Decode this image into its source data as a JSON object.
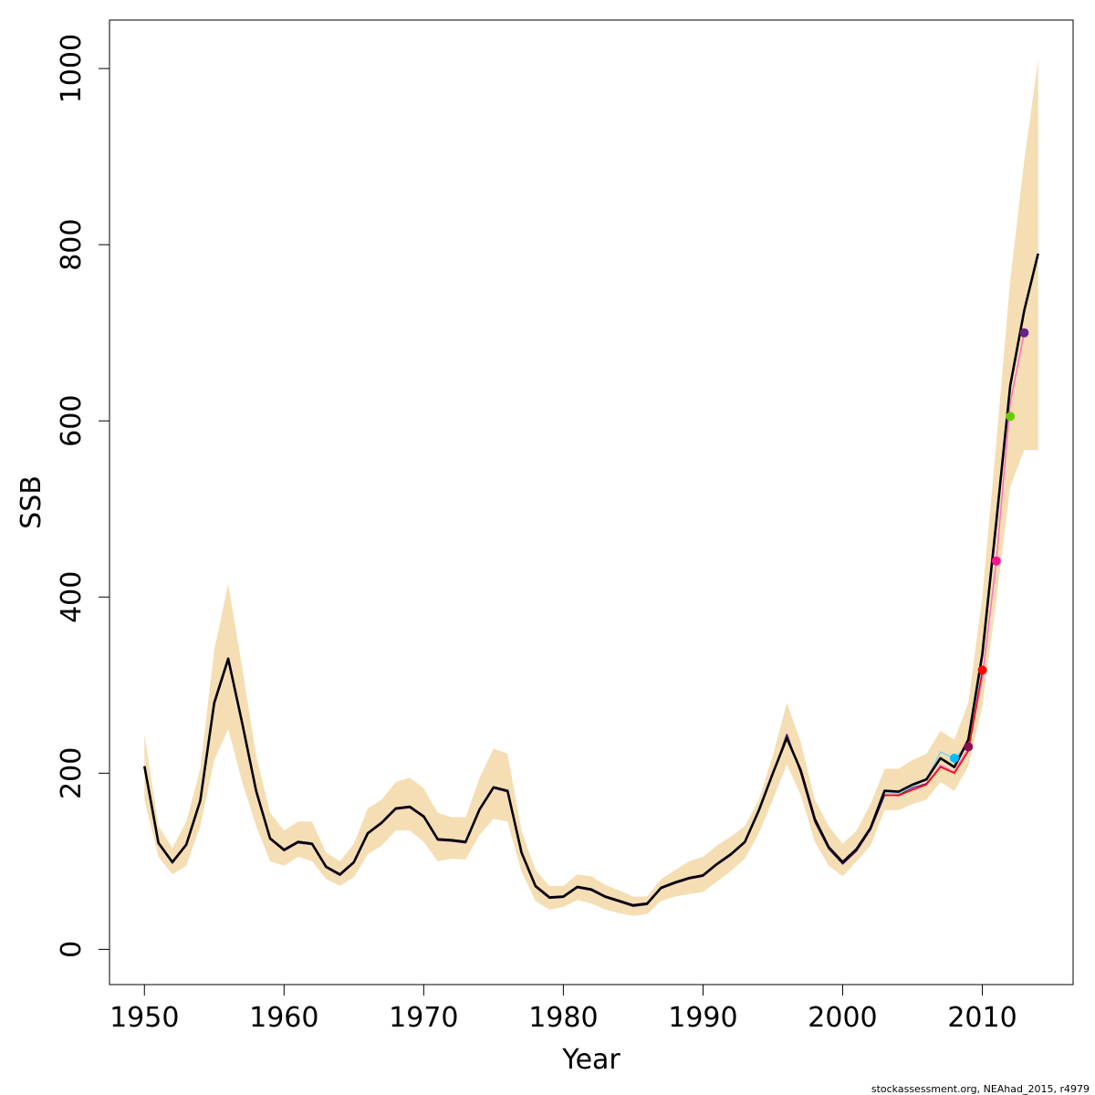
{
  "chart_data": {
    "type": "line",
    "xlabel": "Year",
    "ylabel": "SSB",
    "xlim": [
      1947.5,
      2016.5
    ],
    "ylim": [
      -40,
      1055
    ],
    "x_ticks": [
      1950,
      1960,
      1970,
      1980,
      1990,
      2000,
      2010
    ],
    "y_ticks": [
      0,
      200,
      400,
      600,
      800,
      1000
    ],
    "grid": false,
    "legend": "none",
    "footer": "stockassessment.org, NEAhad_2015, r4979",
    "confidence_band": {
      "color": "#f5deb3",
      "x": [
        1950,
        1951,
        1952,
        1953,
        1954,
        1955,
        1956,
        1957,
        1958,
        1959,
        1960,
        1961,
        1962,
        1963,
        1964,
        1965,
        1966,
        1967,
        1968,
        1969,
        1970,
        1971,
        1972,
        1973,
        1974,
        1975,
        1976,
        1977,
        1978,
        1979,
        1980,
        1981,
        1982,
        1983,
        1984,
        1985,
        1986,
        1987,
        1988,
        1989,
        1990,
        1991,
        1992,
        1993,
        1994,
        1995,
        1996,
        1997,
        1998,
        1999,
        2000,
        2001,
        2002,
        2003,
        2004,
        2005,
        2006,
        2007,
        2008,
        2009,
        2010,
        2011,
        2012,
        2013,
        2014
      ],
      "upper": [
        245,
        140,
        115,
        145,
        205,
        340,
        415,
        320,
        220,
        155,
        135,
        145,
        145,
        110,
        100,
        120,
        160,
        170,
        190,
        195,
        183,
        155,
        150,
        150,
        195,
        228,
        222,
        135,
        90,
        72,
        72,
        85,
        83,
        73,
        67,
        60,
        60,
        80,
        90,
        100,
        105,
        118,
        128,
        140,
        170,
        220,
        280,
        235,
        170,
        140,
        120,
        135,
        165,
        205,
        205,
        215,
        222,
        248,
        238,
        280,
        400,
        575,
        760,
        895,
        1010
      ],
      "lower": [
        170,
        105,
        85,
        95,
        140,
        215,
        250,
        190,
        140,
        100,
        95,
        105,
        100,
        80,
        72,
        82,
        108,
        118,
        135,
        135,
        122,
        100,
        103,
        102,
        130,
        148,
        145,
        88,
        55,
        45,
        48,
        56,
        52,
        45,
        41,
        38,
        40,
        55,
        60,
        63,
        65,
        77,
        89,
        103,
        132,
        170,
        210,
        175,
        122,
        95,
        83,
        100,
        118,
        158,
        158,
        165,
        170,
        190,
        180,
        208,
        275,
        395,
        525,
        567,
        567
      ]
    },
    "series": [
      {
        "color": "#4b0082",
        "width": 1.5,
        "x": [
          1950,
          1951,
          1952,
          1953,
          1954,
          1955,
          1956,
          1957,
          1958,
          1959,
          1960,
          1961,
          1962,
          1963,
          1964,
          1965,
          1966,
          1967,
          1968,
          1969,
          1970,
          1971,
          1972,
          1973,
          1974,
          1975,
          1976,
          1977,
          1978,
          1979,
          1980,
          1981,
          1982,
          1983,
          1984,
          1985,
          1986,
          1987,
          1988,
          1989,
          1990,
          1991,
          1992,
          1993,
          1994,
          1995,
          1996,
          1997,
          1998,
          1999,
          2000,
          2001,
          2002,
          2003,
          2004,
          2005,
          2006,
          2007,
          2008,
          2009
        ],
        "values": [
          207,
          120,
          98,
          118,
          168,
          278,
          328,
          255,
          178,
          125,
          112,
          121,
          119,
          93,
          84,
          98,
          131,
          143,
          159,
          161,
          150,
          124,
          123,
          121,
          158,
          183,
          179,
          109,
          71,
          58,
          59,
          70,
          67,
          59,
          54,
          49,
          51,
          69,
          75,
          80,
          83,
          96,
          107,
          121,
          157,
          199,
          244,
          200,
          145,
          114,
          97,
          112,
          136,
          175,
          175,
          183,
          188,
          208,
          201,
          228
        ]
      },
      {
        "color": "#ff6ec7",
        "width": 1.5,
        "x": [
          2003,
          2004,
          2005,
          2006,
          2007,
          2008,
          2009,
          2010,
          2011,
          2012,
          2013
        ],
        "values": [
          176,
          174,
          182,
          187,
          209,
          201,
          228,
          308,
          440,
          620,
          700
        ]
      },
      {
        "color": "#87ceeb",
        "width": 1.5,
        "x": [
          2003,
          2004,
          2005,
          2006,
          2007,
          2008,
          2009,
          2010
        ],
        "values": [
          178,
          177,
          185,
          193,
          224,
          217,
          232,
          320
        ]
      },
      {
        "color": "#ff0000",
        "width": 1.5,
        "x": [
          2003,
          2004,
          2005,
          2006,
          2007,
          2008,
          2009,
          2010
        ],
        "values": [
          175,
          175,
          181,
          187,
          207,
          200,
          225,
          315
        ]
      },
      {
        "color": "#000000",
        "width": 2.6,
        "x": [
          1950,
          1951,
          1952,
          1953,
          1954,
          1955,
          1956,
          1957,
          1958,
          1959,
          1960,
          1961,
          1962,
          1963,
          1964,
          1965,
          1966,
          1967,
          1968,
          1969,
          1970,
          1971,
          1972,
          1973,
          1974,
          1975,
          1976,
          1977,
          1978,
          1979,
          1980,
          1981,
          1982,
          1983,
          1984,
          1985,
          1986,
          1987,
          1988,
          1989,
          1990,
          1991,
          1992,
          1993,
          1994,
          1995,
          1996,
          1997,
          1998,
          1999,
          2000,
          2001,
          2002,
          2003,
          2004,
          2005,
          2006,
          2007,
          2008,
          2009,
          2010,
          2011,
          2012,
          2013,
          2014
        ],
        "values": [
          208,
          121,
          99,
          119,
          169,
          280,
          330,
          257,
          180,
          126,
          113,
          122,
          120,
          94,
          85,
          99,
          132,
          144,
          160,
          162,
          151,
          125,
          124,
          122,
          159,
          184,
          180,
          110,
          72,
          59,
          60,
          71,
          68,
          60,
          55,
          50,
          52,
          70,
          76,
          81,
          84,
          97,
          108,
          122,
          158,
          200,
          240,
          203,
          148,
          116,
          99,
          114,
          138,
          180,
          179,
          187,
          193,
          217,
          207,
          238,
          335,
          485,
          640,
          725,
          790
        ]
      }
    ],
    "points": [
      {
        "x": 2008,
        "y": 217,
        "color": "#00bfff"
      },
      {
        "x": 2009,
        "y": 230,
        "color": "#8b0a50"
      },
      {
        "x": 2010,
        "y": 317,
        "color": "#ff0000"
      },
      {
        "x": 2011,
        "y": 441,
        "color": "#ff1493"
      },
      {
        "x": 2012,
        "y": 605,
        "color": "#66cd00"
      },
      {
        "x": 2013,
        "y": 700,
        "color": "#68228b"
      }
    ]
  }
}
